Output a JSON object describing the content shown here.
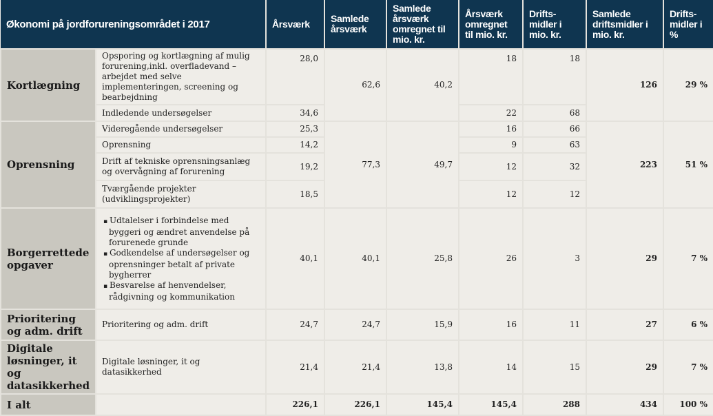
{
  "headers": [
    "Økonomi på jordforureningsområdet i 2017",
    "Årsværk",
    "Samlede årsværk",
    "Samlede årsværk omregnet til mio. kr.",
    "Årsværk omregnet til mio. kr.",
    "Drifts-midler i mio. kr.",
    "Samlede driftsmidler i mio. kr.",
    "Drifts-midler i %"
  ],
  "groups": {
    "kort": {
      "label": "Kortlægning",
      "samlede": "62,6",
      "omregnet": "40,2",
      "drifts_total": "126",
      "pct": "29 %",
      "rows": [
        {
          "desc": "Opsporing og kortlægning af mulig forurening,inkl. overfladevand – arbejdet med selve implementeringen, screening og bearbejdning",
          "aarsvaerk": "28,0",
          "aar_mio": "18",
          "drifts": "18"
        },
        {
          "desc": "Indledende undersøgelser",
          "aarsvaerk": "34,6",
          "aar_mio": "22",
          "drifts": "68"
        }
      ]
    },
    "opr": {
      "label": "Oprensning",
      "samlede": "77,3",
      "omregnet": "49,7",
      "drifts_total": "223",
      "pct": "51 %",
      "rows": [
        {
          "desc": "Videregående undersøgelser",
          "aarsvaerk": "25,3",
          "aar_mio": "16",
          "drifts": "66"
        },
        {
          "desc": "Oprensning",
          "aarsvaerk": "14,2",
          "aar_mio": "9",
          "drifts": "63"
        },
        {
          "desc": "Drift af tekniske oprensningsanlæg og overvågning af forurening",
          "aarsvaerk": "19,2",
          "aar_mio": "12",
          "drifts": "32"
        },
        {
          "desc": "Tværgående projekter (udviklingsprojekter)",
          "aarsvaerk": "18,5",
          "aar_mio": "12",
          "drifts": "12"
        }
      ]
    },
    "borg": {
      "label": "Borgerrettede opgaver",
      "bullets": [
        "Udtalelser i forbindelse med byggeri og ændret anvendelse på forurenede grunde",
        "Godkendelse af undersøgelser og oprensninger betalt af private bygherrer",
        "Besvarelse af henvendelser, rådgivning og kommunikation"
      ],
      "aarsvaerk": "40,1",
      "samlede": "40,1",
      "omregnet": "25,8",
      "aar_mio": "26",
      "drifts": "3",
      "drifts_total": "29",
      "pct": "7 %"
    },
    "prio": {
      "label": "Prioritering og adm. drift",
      "desc": "Prioritering og adm. drift",
      "aarsvaerk": "24,7",
      "samlede": "24,7",
      "omregnet": "15,9",
      "aar_mio": "16",
      "drifts": "11",
      "drifts_total": "27",
      "pct": "6 %"
    },
    "digi": {
      "label": "Digitale løsninger, it og datasikkerhed",
      "desc": "Digitale løsninger, it og datasikkerhed",
      "aarsvaerk": "21,4",
      "samlede": "21,4",
      "omregnet": "13,8",
      "aar_mio": "14",
      "drifts": "15",
      "drifts_total": "29",
      "pct": "7 %"
    }
  },
  "total": {
    "label": "I alt",
    "aarsvaerk": "226,1",
    "samlede": "226,1",
    "omregnet": "145,4",
    "aar_mio": "145,4",
    "drifts": "288",
    "drifts_total": "434",
    "pct": "100 %"
  }
}
